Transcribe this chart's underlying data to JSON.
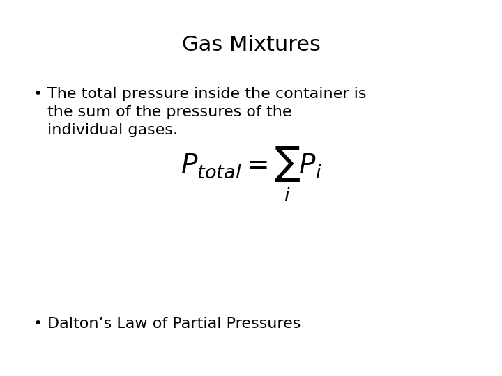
{
  "title": "Gas Mixtures",
  "bullet1_line1": "The total pressure inside the container is",
  "bullet1_line2": "the sum of the pressures of the",
  "bullet1_line3": "individual gases.",
  "formula": "$P_{total} = \\sum_{i} P_i$",
  "bullet2": "Dalton’s Law of Partial Pressures",
  "background_color": "#ffffff",
  "text_color": "#000000",
  "title_fontsize": 22,
  "bullet_fontsize": 16,
  "formula_fontsize": 28,
  "bullet2_fontsize": 16
}
